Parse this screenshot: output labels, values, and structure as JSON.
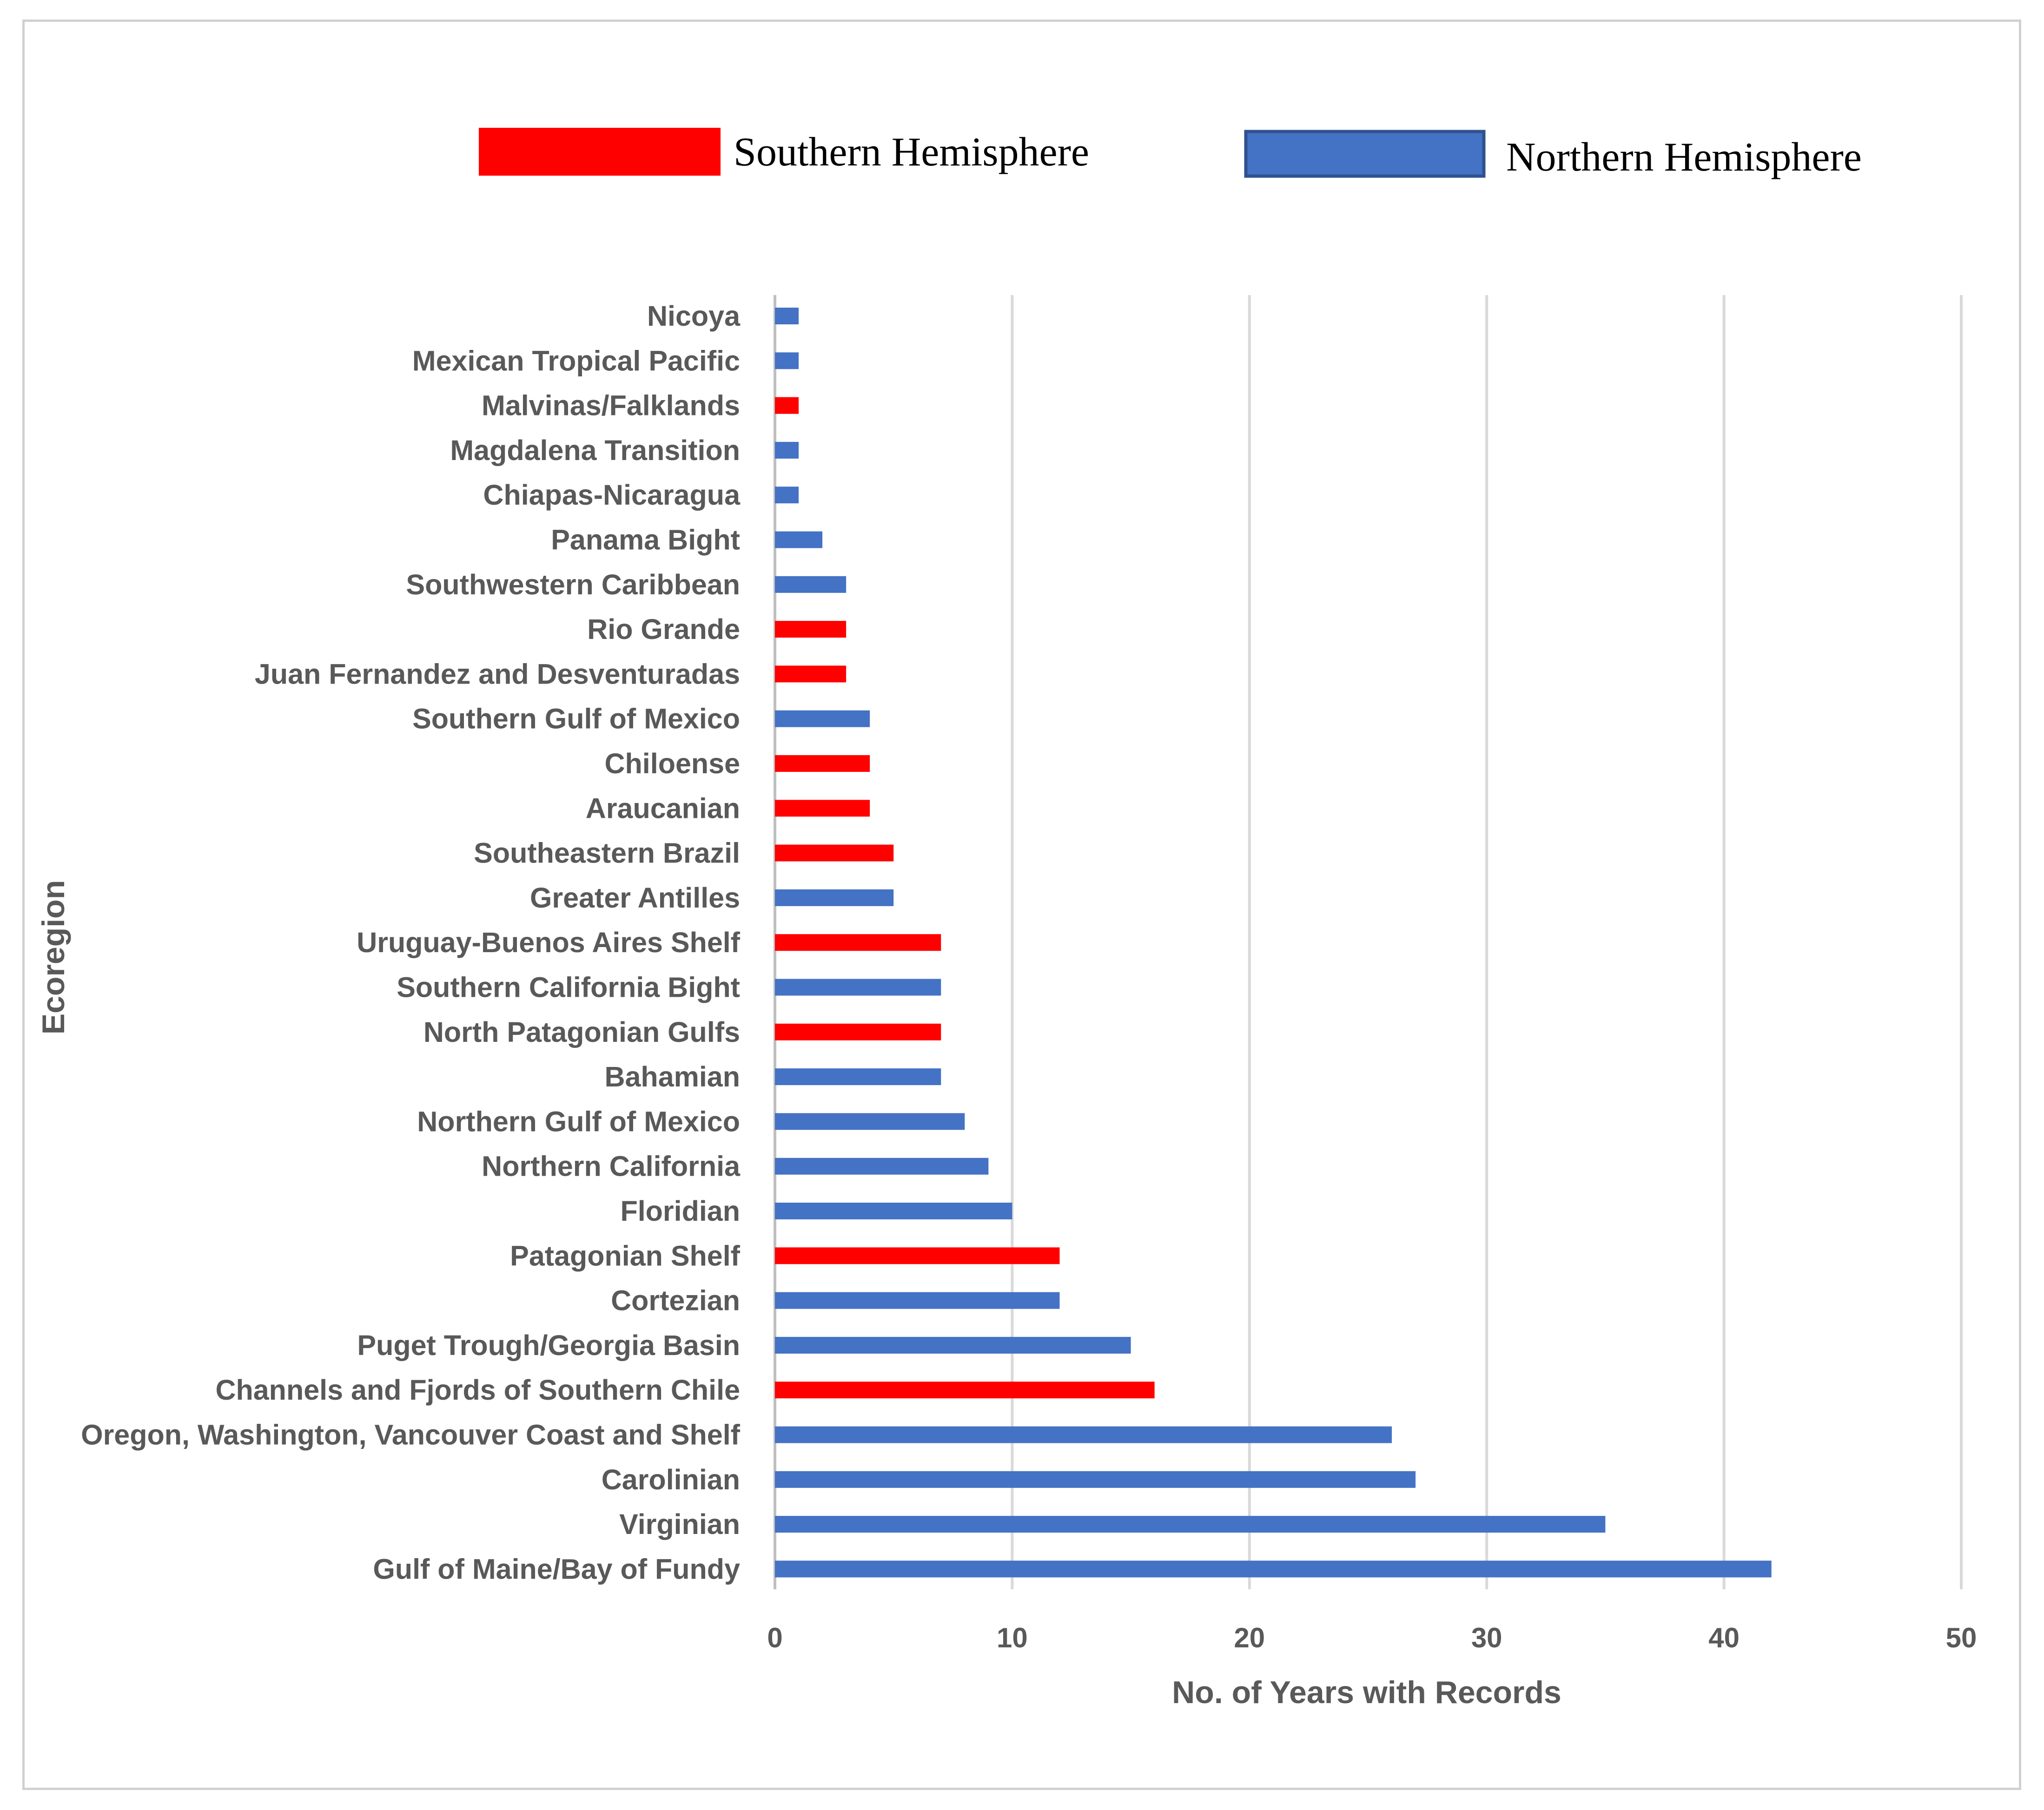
{
  "chart_data": {
    "type": "bar",
    "orientation": "horizontal",
    "xlabel": "No. of Years with Records",
    "ylabel": "Ecoregion",
    "xlim": [
      0,
      50
    ],
    "xticks": [
      "0",
      "10",
      "20",
      "30",
      "40",
      "50"
    ],
    "grid": true,
    "legend": [
      {
        "key": "southern",
        "label": "Southern Hemisphere",
        "color": "#ff0000"
      },
      {
        "key": "northern",
        "label": "Northern Hemisphere",
        "color": "#4472c4"
      }
    ],
    "categories": [
      {
        "name": "Nicoya",
        "value": 1,
        "hemisphere": "northern"
      },
      {
        "name": "Mexican Tropical Pacific",
        "value": 1,
        "hemisphere": "northern"
      },
      {
        "name": "Malvinas/Falklands",
        "value": 1,
        "hemisphere": "southern"
      },
      {
        "name": "Magdalena Transition",
        "value": 1,
        "hemisphere": "northern"
      },
      {
        "name": "Chiapas-Nicaragua",
        "value": 1,
        "hemisphere": "northern"
      },
      {
        "name": "Panama Bight",
        "value": 2,
        "hemisphere": "northern"
      },
      {
        "name": "Southwestern Caribbean",
        "value": 3,
        "hemisphere": "northern"
      },
      {
        "name": "Rio Grande",
        "value": 3,
        "hemisphere": "southern"
      },
      {
        "name": "Juan Fernandez and Desventuradas",
        "value": 3,
        "hemisphere": "southern"
      },
      {
        "name": "Southern Gulf of Mexico",
        "value": 4,
        "hemisphere": "northern"
      },
      {
        "name": "Chiloense",
        "value": 4,
        "hemisphere": "southern"
      },
      {
        "name": "Araucanian",
        "value": 4,
        "hemisphere": "southern"
      },
      {
        "name": "Southeastern Brazil",
        "value": 5,
        "hemisphere": "southern"
      },
      {
        "name": "Greater Antilles",
        "value": 5,
        "hemisphere": "northern"
      },
      {
        "name": "Uruguay-Buenos Aires Shelf",
        "value": 7,
        "hemisphere": "southern"
      },
      {
        "name": "Southern California Bight",
        "value": 7,
        "hemisphere": "northern"
      },
      {
        "name": "North Patagonian Gulfs",
        "value": 7,
        "hemisphere": "southern"
      },
      {
        "name": "Bahamian",
        "value": 7,
        "hemisphere": "northern"
      },
      {
        "name": "Northern Gulf of Mexico",
        "value": 8,
        "hemisphere": "northern"
      },
      {
        "name": "Northern California",
        "value": 9,
        "hemisphere": "northern"
      },
      {
        "name": "Floridian",
        "value": 10,
        "hemisphere": "northern"
      },
      {
        "name": "Patagonian Shelf",
        "value": 12,
        "hemisphere": "southern"
      },
      {
        "name": "Cortezian",
        "value": 12,
        "hemisphere": "northern"
      },
      {
        "name": "Puget Trough/Georgia Basin",
        "value": 15,
        "hemisphere": "northern"
      },
      {
        "name": "Channels and Fjords of Southern Chile",
        "value": 16,
        "hemisphere": "southern"
      },
      {
        "name": "Oregon, Washington, Vancouver Coast and Shelf",
        "value": 26,
        "hemisphere": "northern"
      },
      {
        "name": "Carolinian",
        "value": 27,
        "hemisphere": "northern"
      },
      {
        "name": "Virginian",
        "value": 35,
        "hemisphere": "northern"
      },
      {
        "name": "Gulf of Maine/Bay of Fundy",
        "value": 42,
        "hemisphere": "northern"
      }
    ]
  }
}
